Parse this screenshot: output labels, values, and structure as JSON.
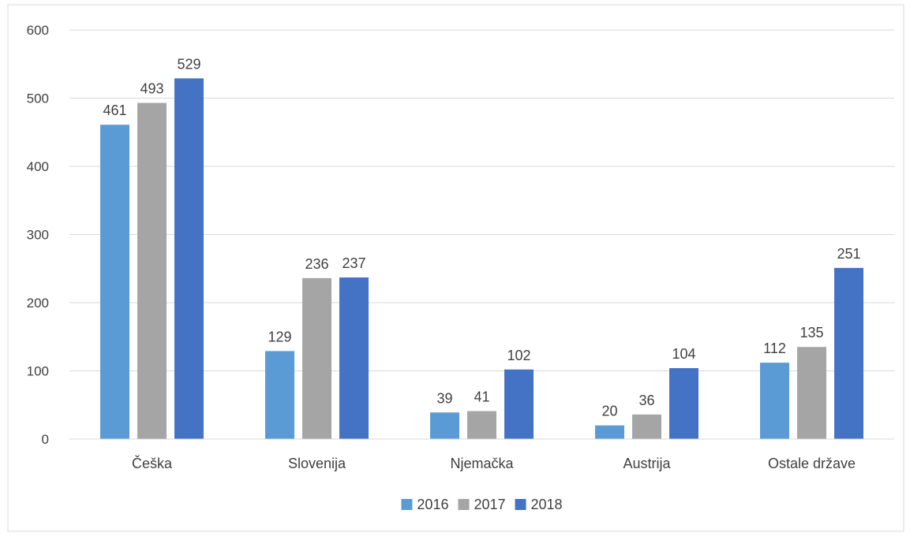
{
  "chart_data": {
    "type": "bar",
    "title": "",
    "xlabel": "",
    "ylabel": "",
    "categories": [
      "Češka",
      "Slovenija",
      "Njemačka",
      "Austrija",
      "Ostale države"
    ],
    "series": [
      {
        "name": "2016",
        "values": [
          461,
          129,
          39,
          20,
          112
        ],
        "color": "#5B9BD5"
      },
      {
        "name": "2017",
        "values": [
          493,
          236,
          41,
          36,
          135
        ],
        "color": "#A5A5A5"
      },
      {
        "name": "2018",
        "values": [
          529,
          237,
          102,
          104,
          251
        ],
        "color": "#4472C4"
      }
    ],
    "ylim": [
      0,
      600
    ],
    "yticks": [
      "0",
      "100",
      "200",
      "300",
      "400",
      "500",
      "600"
    ],
    "grid": true,
    "legend_position": "bottom",
    "data_labels": true
  }
}
